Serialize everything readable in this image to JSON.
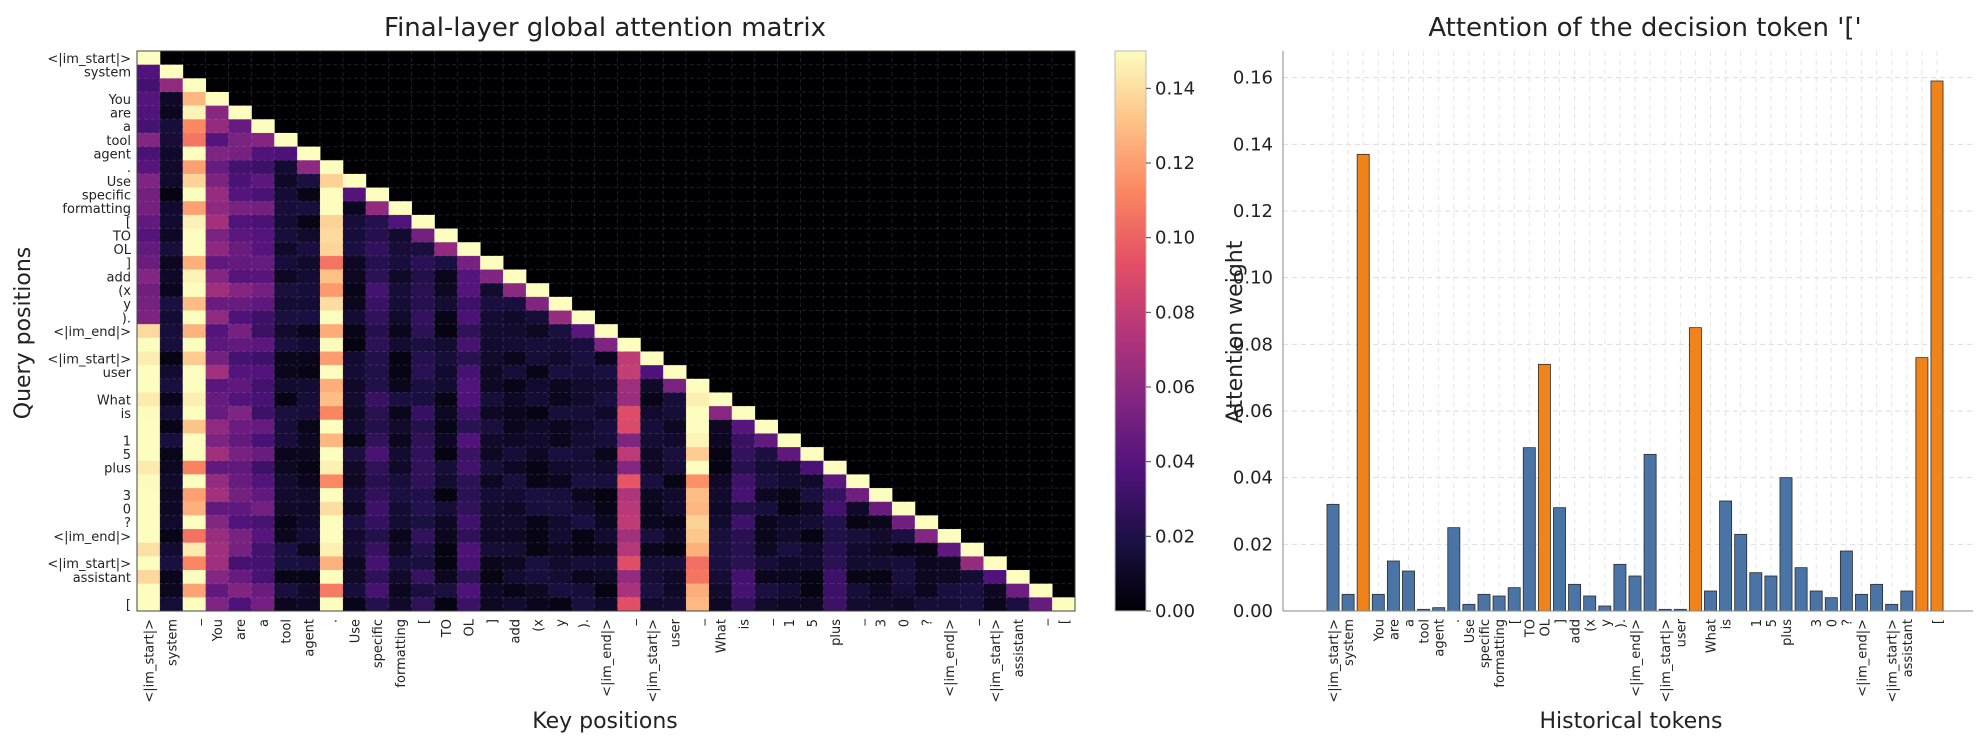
{
  "chart_data": [
    {
      "type": "heatmap",
      "title": "Final-layer global attention matrix",
      "xlabel": "Key positions",
      "ylabel": "Query positions",
      "tokens": [
        "<|im_start|>",
        "system",
        "_",
        "You",
        "are",
        "a",
        "tool",
        "agent",
        ".",
        "Use",
        "specific",
        "formatting",
        "[",
        "TO",
        "OL",
        "]",
        "add",
        "(x",
        "y",
        ").",
        "<|im_end|>",
        "_",
        "<|im_start|>",
        "user",
        "_",
        "What",
        "is",
        "_",
        "1",
        "5",
        "plus",
        "_",
        "3",
        "0",
        "?",
        "<|im_end|>",
        "_",
        "<|im_start|>",
        "assistant",
        "_",
        "["
      ],
      "x_tick_labels": [
        "<|im_start|>",
        "system",
        "_",
        "You",
        "are",
        "a",
        "tool",
        "agent",
        ".",
        "Use",
        "specific",
        "formatting",
        "[",
        "TO",
        "OL",
        "]",
        "add",
        "(x",
        "y",
        ").",
        "<|im_end|>",
        "_",
        "<|im_start|>",
        "user",
        "_",
        "What",
        "is",
        "_",
        "1",
        "5",
        "plus",
        "_",
        "3",
        "0",
        "?",
        "<|im_end|>",
        "_",
        "<|im_start|>",
        "assistant",
        "_",
        "["
      ],
      "y_tick_labels": [
        "<|im_start|>",
        "system",
        "",
        "You",
        "are",
        "a",
        "tool",
        "agent",
        ".",
        "Use",
        "specific",
        "formatting",
        "[",
        "TO",
        "OL",
        "]",
        "add",
        "(x",
        "y",
        ").",
        "<|im_end|>",
        "",
        "<|im_start|>",
        "user",
        "",
        "What",
        "is",
        "",
        "1",
        "5",
        "plus",
        "",
        "3",
        "0",
        "?",
        "<|im_end|>",
        "",
        "<|im_start|>",
        "assistant",
        "",
        "["
      ],
      "colormap": "magma",
      "colorbar": {
        "min": 0.0,
        "max": 0.15,
        "ticks": [
          "0.00",
          "0.02",
          "0.04",
          "0.06",
          "0.08",
          "0.10",
          "0.12",
          "0.14"
        ]
      },
      "masked": "upper-triangle (causal)",
      "strong_columns_description": "Sink-like columns at key positions 0,2,3,8,21,24"
    },
    {
      "type": "bar",
      "title": "Attention of the decision token '['",
      "xlabel": "Historical tokens",
      "ylabel": "Attention weight",
      "ylim": [
        0,
        0.168
      ],
      "y_ticks": [
        "0.00",
        "0.02",
        "0.04",
        "0.06",
        "0.08",
        "0.10",
        "0.12",
        "0.14",
        "0.16"
      ],
      "categories": [
        "<|im_start|>",
        "system",
        "_",
        "You",
        "are",
        "a",
        "tool",
        "agent",
        ".",
        "Use",
        "specific",
        "formatting",
        "[",
        "TO",
        "OL",
        "]",
        "add",
        "(x",
        "y",
        ").",
        "<|im_end|>",
        "_",
        "<|im_start|>",
        "user",
        "_",
        "What",
        "is",
        "_",
        "1",
        "5",
        "plus",
        "_",
        "3",
        "0",
        "?",
        "<|im_end|>",
        "_",
        "<|im_start|>",
        "assistant",
        "_",
        "["
      ],
      "tick_labels": [
        "<|im_start|>",
        "system",
        "",
        "You",
        "are",
        "a",
        "tool",
        "agent",
        ".",
        "Use",
        "specific",
        "formatting",
        "[",
        "TO",
        "OL",
        "]",
        "add",
        "(x",
        "y",
        ").",
        "<|im_end|>",
        "",
        "<|im_start|>",
        "user",
        "",
        "What",
        "is",
        "",
        "1",
        "5",
        "plus",
        "",
        "3",
        "0",
        "?",
        "<|im_end|>",
        "",
        "<|im_start|>",
        "assistant",
        "",
        "["
      ],
      "values": [
        0.032,
        0.005,
        0.137,
        0.005,
        0.015,
        0.012,
        0.0005,
        0.001,
        0.025,
        0.002,
        0.005,
        0.0045,
        0.007,
        0.049,
        0.074,
        0.031,
        0.008,
        0.0045,
        0.0015,
        0.014,
        0.0105,
        0.047,
        0.0005,
        0.0005,
        0.085,
        0.006,
        0.033,
        0.023,
        0.0115,
        0.0105,
        0.04,
        0.013,
        0.006,
        0.004,
        0.018,
        0.005,
        0.008,
        0.002,
        0.006,
        0.076,
        0.159
      ],
      "highlighted": [
        false,
        false,
        true,
        false,
        false,
        false,
        false,
        false,
        false,
        false,
        false,
        false,
        false,
        false,
        true,
        false,
        false,
        false,
        false,
        false,
        false,
        false,
        false,
        false,
        true,
        false,
        false,
        false,
        false,
        false,
        false,
        false,
        false,
        false,
        false,
        false,
        false,
        false,
        false,
        true,
        true
      ],
      "colors": {
        "normal": "#4a73a6",
        "highlight": "#f0841a",
        "edge": "#2b2b2b"
      }
    }
  ]
}
